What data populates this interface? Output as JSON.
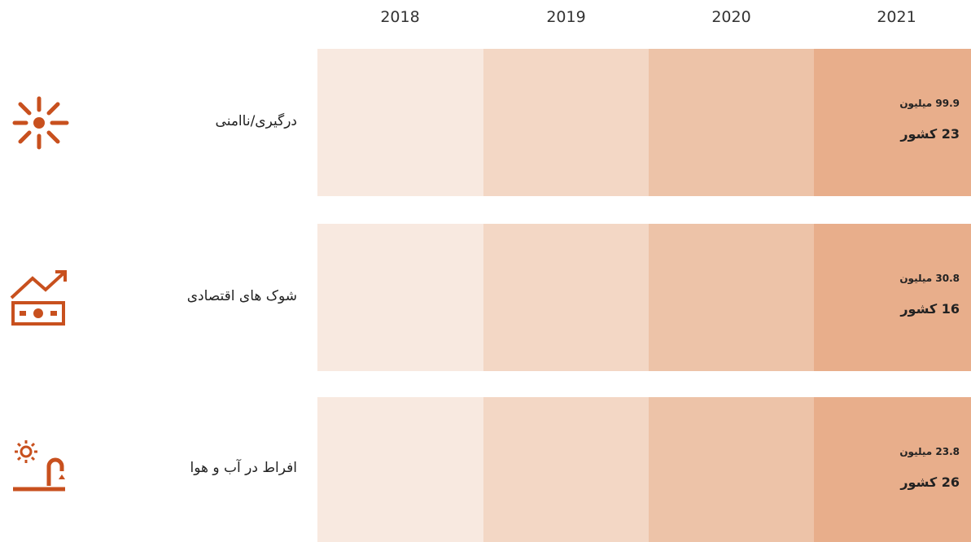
{
  "header": {
    "years": [
      "2018",
      "2019",
      "2020",
      "2021"
    ]
  },
  "rows": [
    {
      "label": "درگیری/ناامنی",
      "people": "99.9 میلیون",
      "countries": "23 کشور"
    },
    {
      "label": "شوک های اقتصادی",
      "people": "30.8 میلیون",
      "countries": "16 کشور"
    },
    {
      "label": "افراط در آب و هوا",
      "people": "23.8 میلیون",
      "countries": "26 کشور"
    }
  ]
}
